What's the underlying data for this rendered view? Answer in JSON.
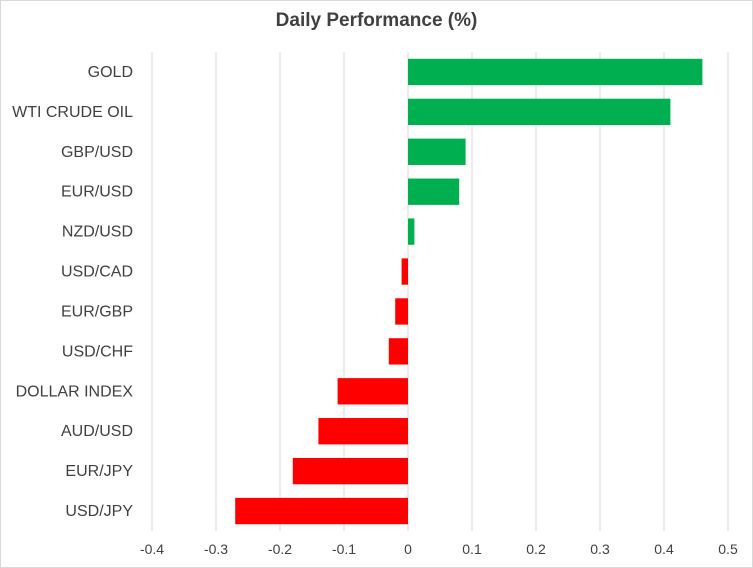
{
  "chart_data": {
    "type": "bar",
    "orientation": "horizontal",
    "title": "Daily Performance (%)",
    "xlabel": "",
    "ylabel": "",
    "categories": [
      "GOLD",
      "WTI CRUDE OIL",
      "GBP/USD",
      "EUR/USD",
      "NZD/USD",
      "USD/CAD",
      "EUR/GBP",
      "USD/CHF",
      "DOLLAR INDEX",
      "AUD/USD",
      "EUR/JPY",
      "USD/JPY"
    ],
    "values": [
      0.46,
      0.41,
      0.09,
      0.08,
      0.01,
      -0.01,
      -0.02,
      -0.03,
      -0.11,
      -0.14,
      -0.18,
      -0.27
    ],
    "xlim": [
      -0.4,
      0.5
    ],
    "xticks": [
      "-0.4",
      "-0.3",
      "-0.2",
      "-0.1",
      "0",
      "0.1",
      "0.2",
      "0.3",
      "0.4",
      "0.5"
    ],
    "grid": true,
    "legend": "none",
    "colors": {
      "positive": "#00b050",
      "negative": "#ff0000"
    }
  }
}
